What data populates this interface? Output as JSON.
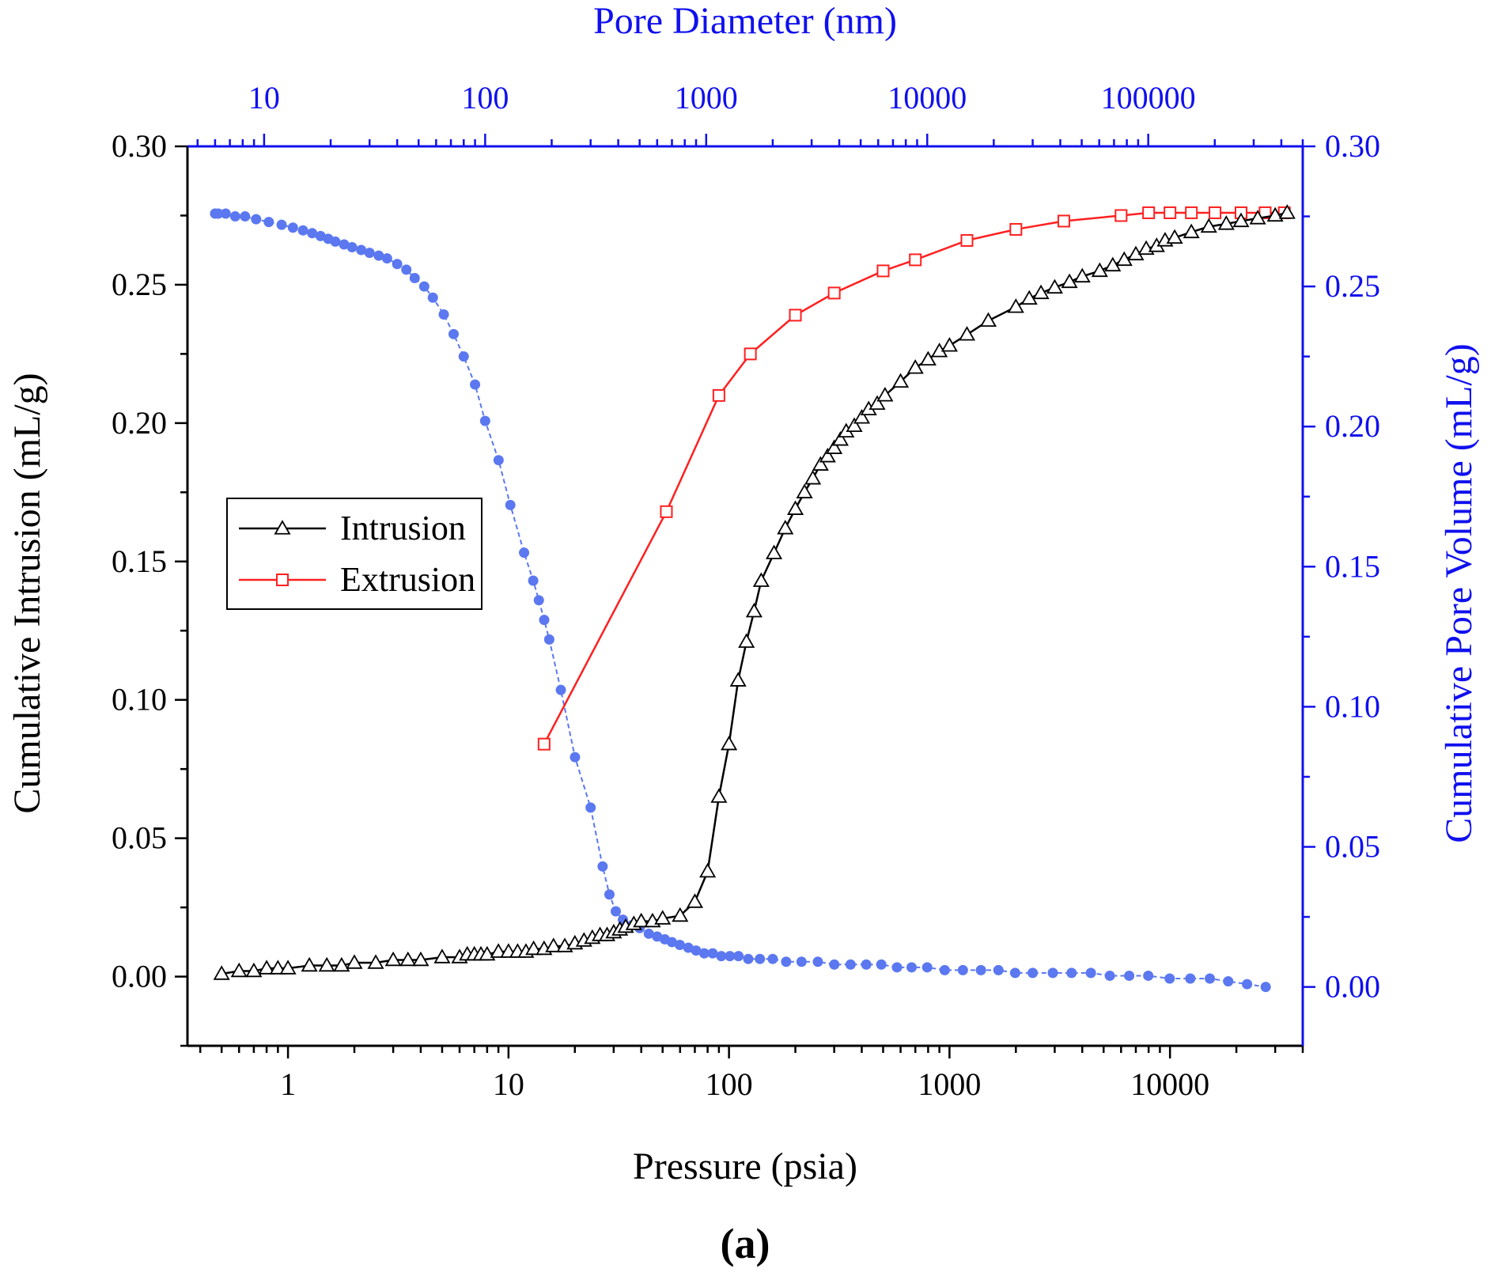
{
  "chart_data": {
    "type": "scatter",
    "subplot_label": "(a)",
    "bottom_axis": {
      "label": "Pressure (psia)",
      "scale": "log",
      "range": [
        0.35,
        40000
      ],
      "tick_labels": [
        "1",
        "10",
        "100",
        "1000",
        "10000"
      ],
      "tick_values": [
        1,
        10,
        100,
        1000,
        10000
      ]
    },
    "top_axis": {
      "label": "Pore Diameter (nm)",
      "scale": "log",
      "range": [
        4.5,
        500000
      ],
      "tick_labels": [
        "10",
        "100",
        "1000",
        "10000",
        "100000"
      ],
      "tick_values": [
        10,
        100,
        1000,
        10000,
        100000
      ]
    },
    "left_axis": {
      "label": "Cumulative Intrusion (mL/g)",
      "range": [
        -0.025,
        0.3
      ],
      "tick_labels": [
        "0.00",
        "0.05",
        "0.10",
        "0.15",
        "0.20",
        "0.25",
        "0.30"
      ],
      "tick_values": [
        0,
        0.05,
        0.1,
        0.15,
        0.2,
        0.25,
        0.3
      ]
    },
    "right_axis": {
      "label": "Cumulative Pore Volume (mL/g)",
      "range": [
        -0.021,
        0.3
      ],
      "tick_labels": [
        "0.00",
        "0.05",
        "0.10",
        "0.15",
        "0.20",
        "0.25",
        "0.30"
      ],
      "tick_values": [
        0,
        0.05,
        0.1,
        0.15,
        0.2,
        0.25,
        0.3
      ]
    },
    "legend": {
      "position": "left-middle",
      "entries": [
        "Intrusion",
        "Extrusion"
      ]
    },
    "series": [
      {
        "name": "Intrusion",
        "axis": "bottom-left",
        "color": "#000000",
        "marker": "open-triangle",
        "x": [
          0.5,
          0.6,
          0.7,
          0.8,
          0.9,
          1.0,
          1.25,
          1.5,
          1.75,
          2.0,
          2.5,
          3.0,
          3.5,
          4.0,
          5.0,
          6.0,
          6.5,
          7.0,
          7.5,
          8.0,
          9.0,
          10.0,
          11,
          12,
          13,
          14.5,
          16,
          18,
          20,
          22,
          24,
          26,
          28,
          30,
          32,
          34,
          37,
          40,
          45,
          50,
          60,
          70,
          80,
          90,
          100,
          110,
          120,
          130,
          140,
          160,
          180,
          200,
          220,
          240,
          260,
          280,
          300,
          320,
          340,
          370,
          400,
          430,
          470,
          510,
          600,
          700,
          800,
          900,
          1000,
          1200,
          1500,
          2000,
          2300,
          2600,
          3000,
          3500,
          4000,
          4800,
          5500,
          6200,
          7000,
          7800,
          8700,
          9500,
          10500,
          12500,
          15000,
          18000,
          21000,
          25000,
          30000,
          34000
        ],
        "y": [
          0.001,
          0.002,
          0.002,
          0.003,
          0.003,
          0.003,
          0.004,
          0.004,
          0.004,
          0.005,
          0.005,
          0.006,
          0.006,
          0.006,
          0.007,
          0.007,
          0.008,
          0.008,
          0.008,
          0.008,
          0.009,
          0.009,
          0.009,
          0.009,
          0.01,
          0.01,
          0.011,
          0.011,
          0.012,
          0.013,
          0.014,
          0.015,
          0.015,
          0.016,
          0.017,
          0.018,
          0.019,
          0.02,
          0.02,
          0.021,
          0.022,
          0.027,
          0.038,
          0.065,
          0.084,
          0.107,
          0.121,
          0.132,
          0.143,
          0.153,
          0.162,
          0.169,
          0.175,
          0.18,
          0.185,
          0.188,
          0.191,
          0.194,
          0.197,
          0.199,
          0.202,
          0.205,
          0.207,
          0.21,
          0.215,
          0.22,
          0.223,
          0.226,
          0.228,
          0.232,
          0.237,
          0.242,
          0.245,
          0.247,
          0.249,
          0.251,
          0.253,
          0.255,
          0.257,
          0.259,
          0.261,
          0.263,
          0.264,
          0.266,
          0.267,
          0.269,
          0.271,
          0.272,
          0.273,
          0.274,
          0.275,
          0.276
        ]
      },
      {
        "name": "Extrusion",
        "axis": "bottom-left",
        "color": "#ff2020",
        "marker": "open-square",
        "x": [
          14.5,
          52,
          90,
          125,
          200,
          300,
          500,
          700,
          1200,
          2000,
          3300,
          6000,
          8000,
          10000,
          12500,
          16000,
          21000,
          27000,
          33000
        ],
        "y": [
          0.084,
          0.168,
          0.21,
          0.225,
          0.239,
          0.247,
          0.255,
          0.259,
          0.266,
          0.27,
          0.273,
          0.275,
          0.276,
          0.276,
          0.276,
          0.276,
          0.276,
          0.276,
          0.276
        ]
      },
      {
        "name": "Pore Volume",
        "axis": "top-right",
        "color": "#5b78f0",
        "marker": "filled-circle",
        "x": [
          6,
          6.2,
          6.7,
          7.4,
          8.2,
          9.2,
          10.5,
          12,
          13.5,
          15,
          16.5,
          18,
          19.5,
          21,
          23,
          25,
          27.5,
          30,
          33,
          36,
          40,
          44,
          48,
          53,
          58,
          65,
          72,
          80,
          90,
          100,
          115,
          130,
          150,
          165,
          175,
          185,
          195,
          220,
          255,
          300,
          340,
          365,
          390,
          420,
          460,
          500,
          550,
          600,
          650,
          700,
          760,
          830,
          900,
          980,
          1070,
          1170,
          1280,
          1400,
          1550,
          1750,
          2000,
          2300,
          2700,
          3200,
          3800,
          4500,
          5300,
          6200,
          7300,
          8500,
          10000,
          12000,
          14500,
          17500,
          21000,
          25000,
          30000,
          37000,
          45000,
          55000,
          67000,
          82000,
          100000,
          125000,
          155000,
          190000,
          230000,
          280000,
          340000
        ],
        "y": [
          0.276,
          0.276,
          0.276,
          0.275,
          0.275,
          0.274,
          0.273,
          0.272,
          0.271,
          0.27,
          0.269,
          0.268,
          0.267,
          0.266,
          0.265,
          0.264,
          0.263,
          0.262,
          0.261,
          0.26,
          0.258,
          0.256,
          0.253,
          0.25,
          0.246,
          0.24,
          0.233,
          0.225,
          0.215,
          0.202,
          0.188,
          0.172,
          0.155,
          0.145,
          0.138,
          0.131,
          0.124,
          0.106,
          0.082,
          0.064,
          0.043,
          0.033,
          0.027,
          0.024,
          0.022,
          0.021,
          0.019,
          0.018,
          0.017,
          0.016,
          0.015,
          0.014,
          0.013,
          0.012,
          0.012,
          0.011,
          0.011,
          0.011,
          0.01,
          0.01,
          0.01,
          0.009,
          0.009,
          0.009,
          0.008,
          0.008,
          0.008,
          0.008,
          0.007,
          0.007,
          0.007,
          0.006,
          0.006,
          0.006,
          0.006,
          0.005,
          0.005,
          0.005,
          0.005,
          0.005,
          0.004,
          0.004,
          0.004,
          0.003,
          0.003,
          0.003,
          0.002,
          0.001,
          0.0
        ]
      }
    ],
    "colors": {
      "left_axis": "#000000",
      "right_axis": "#1010ee",
      "top_axis": "#1010ee",
      "pore_volume": "#5b78f0",
      "extrusion": "#ff2020",
      "intrusion": "#000000"
    }
  }
}
